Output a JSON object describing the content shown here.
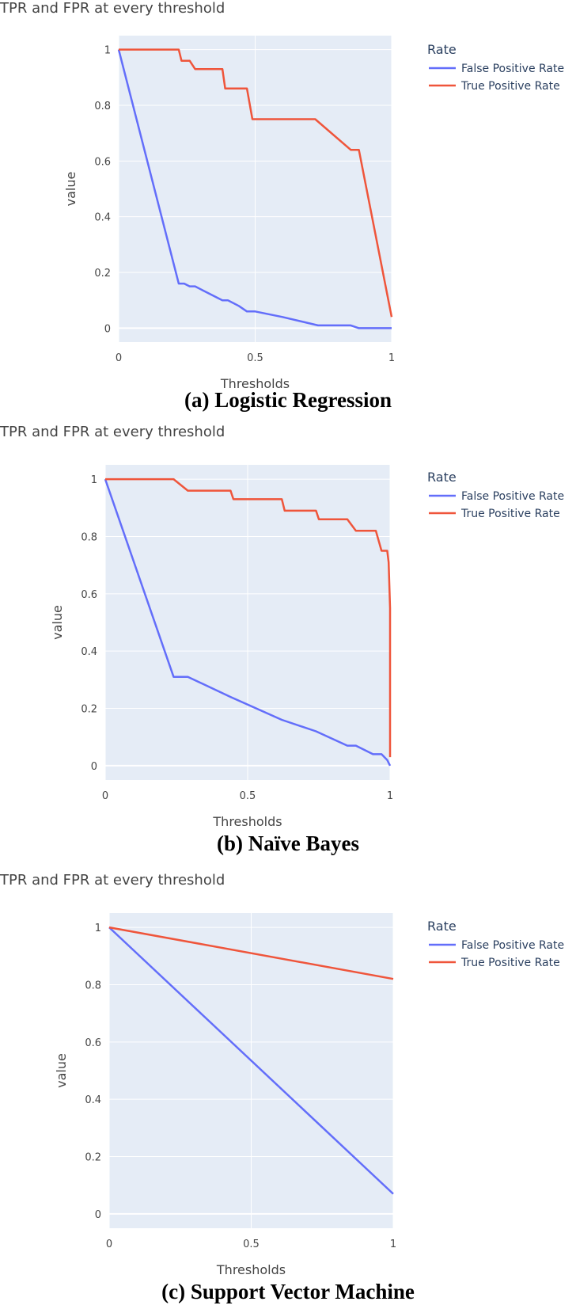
{
  "chart_data": [
    {
      "type": "line",
      "title": "TPR and FPR at every threshold",
      "caption": "(a) Logistic Regression",
      "xlabel": "Thresholds",
      "ylabel": "value",
      "xlim": [
        0,
        1
      ],
      "ylim": [
        -0.05,
        1.05
      ],
      "xticks": [
        "0",
        "0.5",
        "1"
      ],
      "yticks": [
        "0",
        "0.2",
        "0.4",
        "0.6",
        "0.8",
        "1"
      ],
      "grid": true,
      "legend": {
        "title": "Rate",
        "placement": "right"
      },
      "series": [
        {
          "name": "False Positive Rate",
          "color": "#636efa",
          "x": [
            0.0,
            0.22,
            0.24,
            0.26,
            0.28,
            0.3,
            0.32,
            0.36,
            0.38,
            0.4,
            0.44,
            0.47,
            0.5,
            0.6,
            0.73,
            0.85,
            0.88,
            0.9,
            1.0
          ],
          "y": [
            1.0,
            0.16,
            0.16,
            0.15,
            0.15,
            0.14,
            0.13,
            0.11,
            0.1,
            0.1,
            0.08,
            0.06,
            0.06,
            0.04,
            0.01,
            0.01,
            0.0,
            0.0,
            0.0
          ]
        },
        {
          "name": "True Positive Rate",
          "color": "#ef553b",
          "x": [
            0.0,
            0.22,
            0.23,
            0.26,
            0.28,
            0.29,
            0.38,
            0.39,
            0.47,
            0.49,
            0.72,
            0.85,
            0.87,
            0.88,
            1.0
          ],
          "y": [
            1.0,
            1.0,
            0.96,
            0.96,
            0.93,
            0.93,
            0.93,
            0.86,
            0.86,
            0.75,
            0.75,
            0.64,
            0.64,
            0.64,
            0.04
          ]
        }
      ]
    },
    {
      "type": "line",
      "title": "TPR and FPR at every threshold",
      "caption": "(b) Naïve Bayes",
      "xlabel": "Thresholds",
      "ylabel": "value",
      "xlim": [
        0,
        1
      ],
      "ylim": [
        -0.05,
        1.05
      ],
      "xticks": [
        "0",
        "0.5",
        "1"
      ],
      "yticks": [
        "0",
        "0.2",
        "0.4",
        "0.6",
        "0.8",
        "1"
      ],
      "grid": true,
      "legend": {
        "title": "Rate",
        "placement": "right"
      },
      "series": [
        {
          "name": "False Positive Rate",
          "color": "#636efa",
          "x": [
            0.0,
            0.24,
            0.29,
            0.44,
            0.62,
            0.74,
            0.85,
            0.88,
            0.94,
            0.97,
            0.99,
            1.0
          ],
          "y": [
            1.0,
            0.31,
            0.31,
            0.24,
            0.16,
            0.12,
            0.07,
            0.07,
            0.04,
            0.04,
            0.02,
            0.0
          ]
        },
        {
          "name": "True Positive Rate",
          "color": "#ef553b",
          "x": [
            0.0,
            0.24,
            0.29,
            0.44,
            0.45,
            0.62,
            0.63,
            0.74,
            0.75,
            0.85,
            0.88,
            0.95,
            0.97,
            0.99,
            0.995,
            1.0,
            1.0
          ],
          "y": [
            1.0,
            1.0,
            0.96,
            0.96,
            0.93,
            0.93,
            0.89,
            0.89,
            0.86,
            0.86,
            0.82,
            0.82,
            0.75,
            0.75,
            0.71,
            0.55,
            0.03
          ]
        }
      ]
    },
    {
      "type": "line",
      "title": "TPR and FPR at every threshold",
      "caption": "(c) Support Vector Machine",
      "xlabel": "Thresholds",
      "ylabel": "value",
      "xlim": [
        0,
        1
      ],
      "ylim": [
        -0.05,
        1.05
      ],
      "xticks": [
        "0",
        "0.5",
        "1"
      ],
      "yticks": [
        "0",
        "0.2",
        "0.4",
        "0.6",
        "0.8",
        "1"
      ],
      "grid": true,
      "legend": {
        "title": "Rate",
        "placement": "right"
      },
      "series": [
        {
          "name": "False Positive Rate",
          "color": "#636efa",
          "x": [
            0.0,
            1.0
          ],
          "y": [
            1.0,
            0.07
          ]
        },
        {
          "name": "True Positive Rate",
          "color": "#ef553b",
          "x": [
            0.0,
            1.0
          ],
          "y": [
            1.0,
            0.82
          ]
        }
      ]
    }
  ],
  "colors": {
    "plot_bg": "#e5ecf6",
    "grid": "#ffffff",
    "text": "#444444",
    "legend_text": "#2a3f5f"
  }
}
